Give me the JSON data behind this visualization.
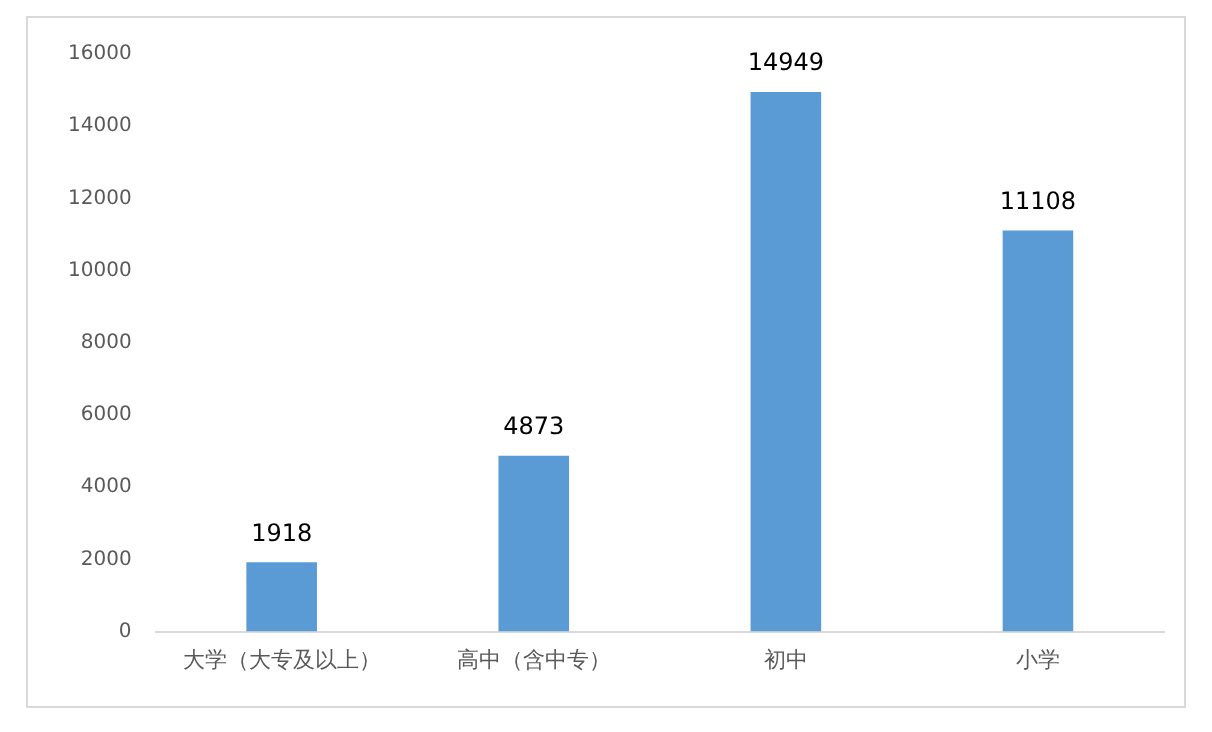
{
  "chart_data": {
    "type": "bar",
    "categories": [
      "大学（大专及以上）",
      "高中（含中专）",
      "初中",
      "小学"
    ],
    "values": [
      1918,
      4873,
      14949,
      11108
    ],
    "color": "#5b9bd5",
    "ylim": [
      0,
      16000
    ],
    "yticks": [
      0,
      2000,
      4000,
      6000,
      8000,
      10000,
      12000,
      14000,
      16000
    ],
    "grid": false,
    "data_labels": true
  }
}
